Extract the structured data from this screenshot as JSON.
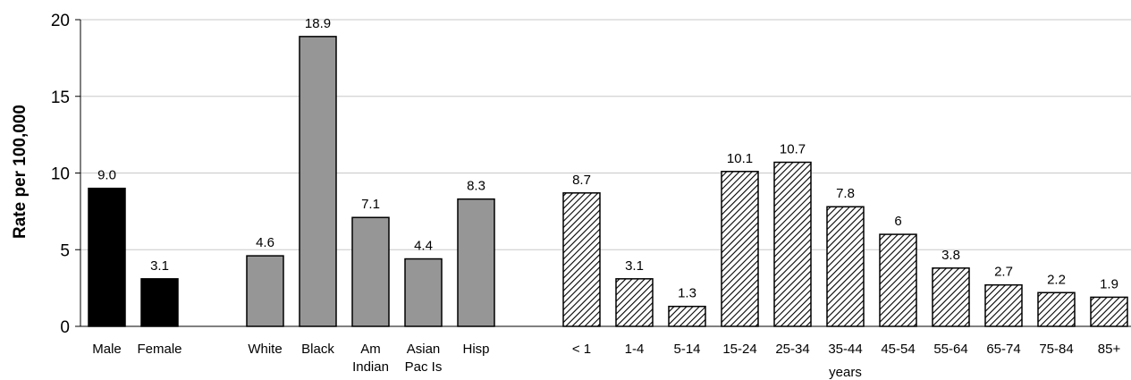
{
  "chart_data": {
    "type": "bar",
    "ylabel": "Rate per 100,000",
    "ylim": [
      0,
      20
    ],
    "yticks": [
      0,
      5,
      10,
      15,
      20
    ],
    "grid": true,
    "groups": [
      {
        "label": "",
        "color": "#000000",
        "pattern": "solid",
        "categories": [
          [
            "Male"
          ],
          [
            "Female"
          ]
        ],
        "values": [
          9.0,
          3.1
        ],
        "value_labels": [
          "9.0",
          "3.1"
        ]
      },
      {
        "label": "",
        "color": "#969696",
        "pattern": "solid",
        "categories": [
          [
            "White"
          ],
          [
            "Black"
          ],
          [
            "Am",
            "Indian"
          ],
          [
            "Asian",
            "Pac Is"
          ],
          [
            "Hisp"
          ]
        ],
        "values": [
          4.6,
          18.9,
          7.1,
          4.4,
          8.3
        ],
        "value_labels": [
          "4.6",
          "18.9",
          "7.1",
          "4.4",
          "8.3"
        ]
      },
      {
        "label": "years",
        "color": "#ffffff",
        "pattern": "diagonal-hatch",
        "categories": [
          [
            "< 1"
          ],
          [
            "1-4"
          ],
          [
            "5-14"
          ],
          [
            "15-24"
          ],
          [
            "25-34"
          ],
          [
            "35-44"
          ],
          [
            "45-54"
          ],
          [
            "55-64"
          ],
          [
            "65-74"
          ],
          [
            "75-84"
          ],
          [
            "85+"
          ]
        ],
        "values": [
          8.7,
          3.1,
          1.3,
          10.1,
          10.7,
          7.8,
          6,
          3.8,
          2.7,
          2.2,
          1.9
        ],
        "value_labels": [
          "8.7",
          "3.1",
          "1.3",
          "10.1",
          "10.7",
          "7.8",
          "6",
          "3.8",
          "2.7",
          "2.2",
          "1.9"
        ]
      }
    ]
  }
}
